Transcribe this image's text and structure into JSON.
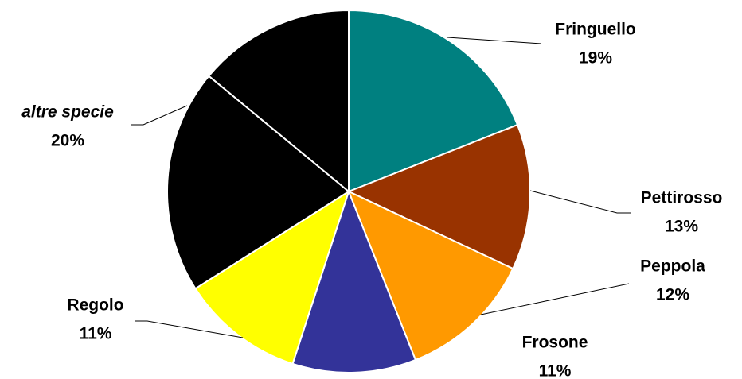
{
  "chart_data": {
    "type": "pie",
    "categories": [
      "Fringuello",
      "Pettirosso",
      "Peppola",
      "Frosone",
      "Regolo",
      "altre specie",
      null
    ],
    "values": [
      19,
      13,
      12,
      11,
      11,
      20,
      14
    ],
    "value_labels": [
      "19%",
      "13%",
      "12%",
      "11%",
      "11%",
      "20%",
      null
    ],
    "colors": [
      "#008080",
      "#993300",
      "#ff9900",
      "#333399",
      "#ffff00",
      "#000000",
      "#000000"
    ]
  }
}
